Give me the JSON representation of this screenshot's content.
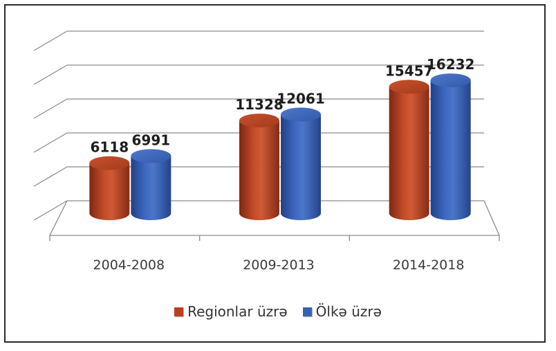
{
  "chart_data": {
    "type": "bar",
    "style": "3d-cylinder",
    "categories": [
      "2004-2008",
      "2009-2013",
      "2014-2018"
    ],
    "series": [
      {
        "name": "Regionlar üzrə",
        "values": [
          6118,
          11328,
          15457
        ],
        "color": "#b8401f"
      },
      {
        "name": "Ölkə üzrə",
        "values": [
          6991,
          12061,
          16232
        ],
        "color": "#3a62b4"
      }
    ],
    "ylim": [
      0,
      20000
    ],
    "grid": true,
    "legend_position": "bottom"
  }
}
